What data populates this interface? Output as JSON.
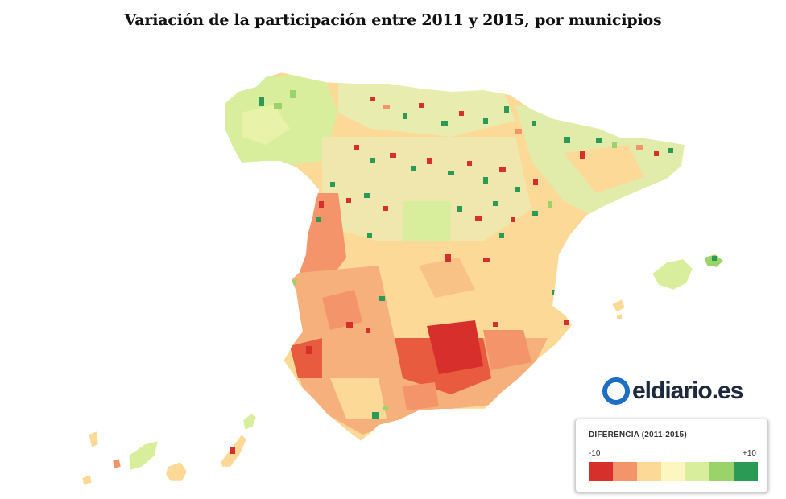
{
  "title": "Variación de la participación entre 2011 y 2015, por municipios",
  "logo": {
    "text": "eldiario.es",
    "icon": "eldiario-logo-icon",
    "brand_color": "#1d6fc4",
    "text_color": "#1d2a3e"
  },
  "legend": {
    "title": "DIFERENCIA (2011-2015)",
    "min_label": "-10",
    "max_label": "+10",
    "colors": [
      "#d7302c",
      "#f4946b",
      "#fcd996",
      "#fdf6c0",
      "#d9ee9c",
      "#99d36a",
      "#2a9a55"
    ]
  },
  "map": {
    "type": "choropleth",
    "region": "Spain, municipalities",
    "variable": "Change in voter turnout 2011-2015 (percentage points)"
  }
}
